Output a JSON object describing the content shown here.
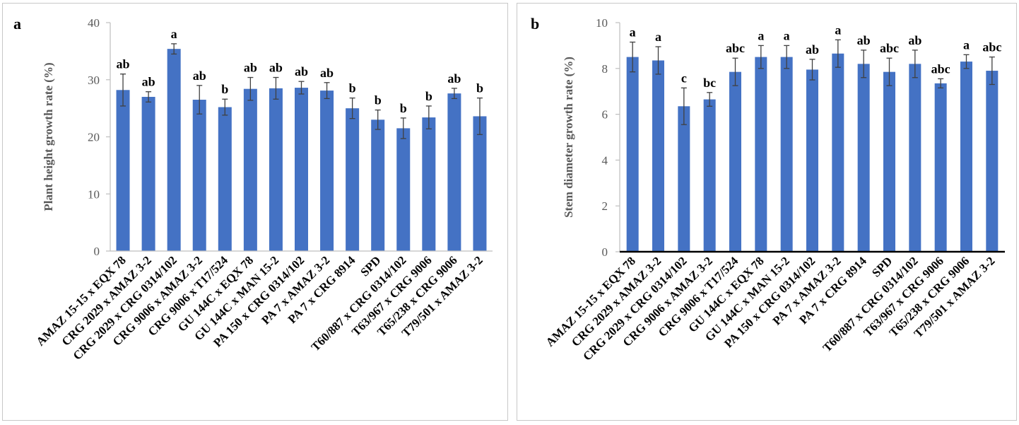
{
  "colors": {
    "bar": "#4472c4",
    "error": "#404040",
    "axis": "#bfbfbf",
    "axis_b": "#000000",
    "text": "#595959"
  },
  "categories": [
    "AMAZ 15-15 x EQX 78",
    "CRG 2029 x AMAZ 3-2",
    "CRG 2029 x CRG 0314/102",
    "CRG 9006 x AMAZ 3-2",
    "CRG 9006 x T17/524",
    "GU 144C x EQX 78",
    "GU 144C x MAN 15-2",
    "PA 150 x CRG 0314/102",
    "PA 7 x AMAZ 3-2",
    "PA 7 x CRG 8914",
    "SPD",
    "T60/887 x CRG 0314/102",
    "T63/967 x CRG 9006",
    "T65/238 x CRG 9006",
    "T79/501 x AMAZ 3-2"
  ],
  "chart_data": [
    {
      "panel": "a",
      "type": "bar",
      "ylabel": "Plant height growth rate (%)",
      "ylim": [
        0,
        40
      ],
      "yticks": [
        0,
        10,
        20,
        30,
        40
      ],
      "values": [
        28.2,
        27.0,
        35.4,
        26.5,
        25.2,
        28.4,
        28.5,
        28.6,
        28.1,
        25.0,
        23.0,
        21.5,
        23.4,
        27.6,
        23.6
      ],
      "errors": [
        2.8,
        0.9,
        0.9,
        2.5,
        1.4,
        2.0,
        1.9,
        1.1,
        1.4,
        1.8,
        1.7,
        1.8,
        2.0,
        0.9,
        3.2
      ],
      "letters": [
        "ab",
        "ab",
        "a",
        "ab",
        "b",
        "ab",
        "ab",
        "ab",
        "ab",
        "b",
        "b",
        "b",
        "b",
        "ab",
        "b"
      ],
      "grid": false
    },
    {
      "panel": "b",
      "type": "bar",
      "ylabel": "Stem diameter growth rate (%)",
      "ylim": [
        0,
        10
      ],
      "yticks": [
        0,
        2,
        4,
        6,
        8,
        10
      ],
      "values": [
        8.5,
        8.35,
        6.35,
        6.65,
        7.85,
        8.5,
        8.5,
        7.95,
        8.65,
        8.2,
        7.85,
        8.2,
        7.35,
        8.3,
        7.9
      ],
      "errors": [
        0.65,
        0.6,
        0.8,
        0.3,
        0.6,
        0.5,
        0.5,
        0.45,
        0.6,
        0.6,
        0.6,
        0.6,
        0.2,
        0.3,
        0.6
      ],
      "letters": [
        "a",
        "a",
        "c",
        "bc",
        "abc",
        "a",
        "a",
        "ab",
        "a",
        "ab",
        "abc",
        "ab",
        "abc",
        "a",
        "abc"
      ],
      "grid": false
    }
  ],
  "panels": {
    "a": {
      "letter": "a"
    },
    "b": {
      "letter": "b"
    }
  }
}
